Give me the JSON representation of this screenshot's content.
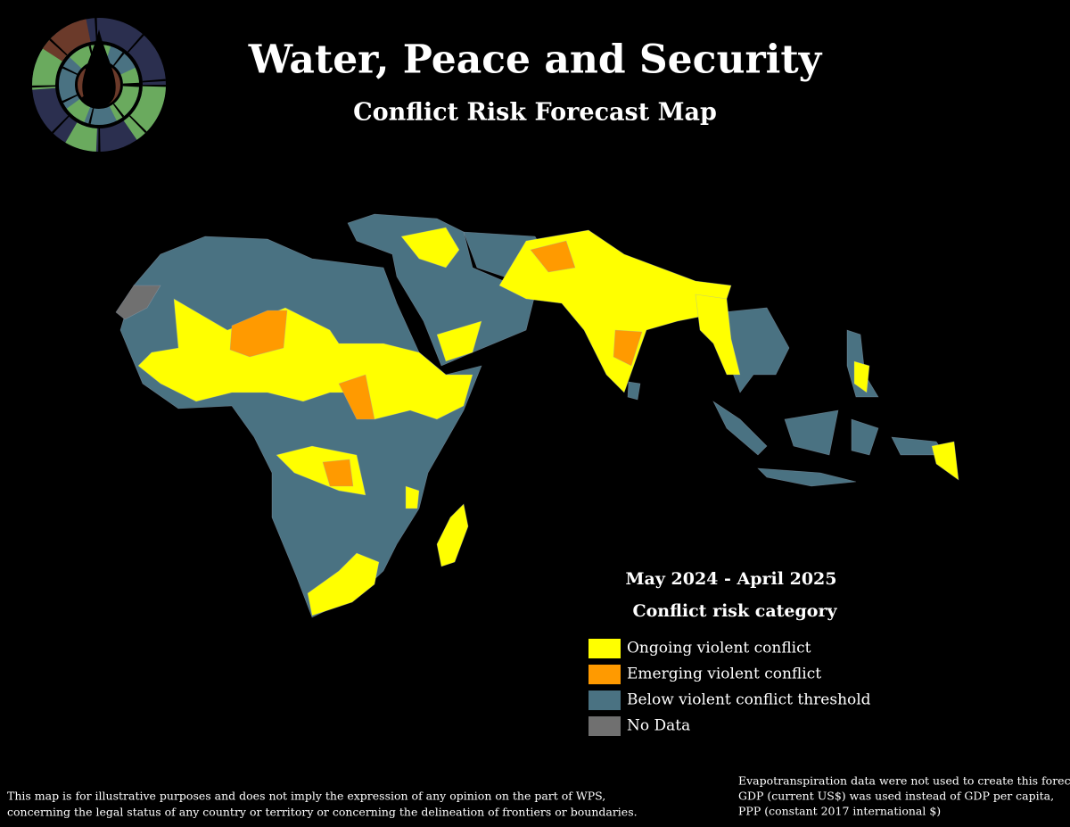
{
  "header": {
    "title": "Water, Peace and Security",
    "subtitle": "Conflict Risk Forecast Map"
  },
  "legend": {
    "period": "May 2024 - April 2025",
    "title": "Conflict risk category",
    "items": [
      {
        "label": "Ongoing violent conflict",
        "color": "#ffff00"
      },
      {
        "label": "Emerging violent conflict",
        "color": "#ff9a00"
      },
      {
        "label": "Below violent conflict threshold",
        "color": "#4a7282"
      },
      {
        "label": "No Data",
        "color": "#707070"
      }
    ]
  },
  "disclaimer": [
    "This map is for illustrative purposes and does not imply the expression of any opinion on the part of WPS,",
    "concerning the legal status of any country or territory or concerning the delineation of frontiers or boundaries."
  ],
  "notes": [
    "Evapotranspiration data were not used to create this forecast",
    "GDP (current US$) was used instead of GDP per capita,",
    "PPP (constant 2017 international $)"
  ]
}
